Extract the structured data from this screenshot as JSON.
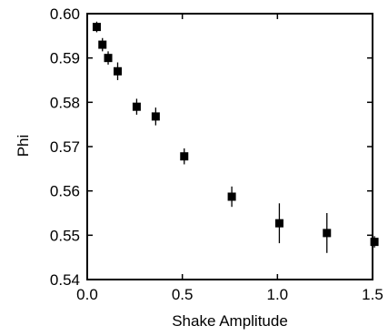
{
  "chart_data": {
    "type": "scatter",
    "title": "",
    "xlabel": "Shake Amplitude",
    "ylabel": "Phi",
    "xlim": [
      0.0,
      1.5
    ],
    "ylim": [
      0.54,
      0.6
    ],
    "xticks": [
      0.0,
      0.5,
      1.0,
      1.5
    ],
    "xtick_labels": [
      "0.0",
      "0.5",
      "1.0",
      "1.5"
    ],
    "yticks": [
      0.54,
      0.55,
      0.56,
      0.57,
      0.58,
      0.59,
      0.6
    ],
    "ytick_labels": [
      "0.54",
      "0.55",
      "0.56",
      "0.57",
      "0.58",
      "0.59",
      "0.60"
    ],
    "grid": false,
    "legend": "none",
    "marker": "square",
    "color": "#000000",
    "points": [
      {
        "x": 0.05,
        "y": 0.597,
        "err": 0.0012
      },
      {
        "x": 0.08,
        "y": 0.593,
        "err": 0.0015
      },
      {
        "x": 0.11,
        "y": 0.59,
        "err": 0.0015
      },
      {
        "x": 0.16,
        "y": 0.587,
        "err": 0.002
      },
      {
        "x": 0.26,
        "y": 0.579,
        "err": 0.0018
      },
      {
        "x": 0.36,
        "y": 0.5768,
        "err": 0.002
      },
      {
        "x": 0.51,
        "y": 0.5678,
        "err": 0.0018
      },
      {
        "x": 0.76,
        "y": 0.5587,
        "err": 0.0023
      },
      {
        "x": 1.01,
        "y": 0.5527,
        "err": 0.0045
      },
      {
        "x": 1.26,
        "y": 0.5505,
        "err": 0.0045
      },
      {
        "x": 1.51,
        "y": 0.5485,
        "err": 0.0013
      }
    ]
  }
}
